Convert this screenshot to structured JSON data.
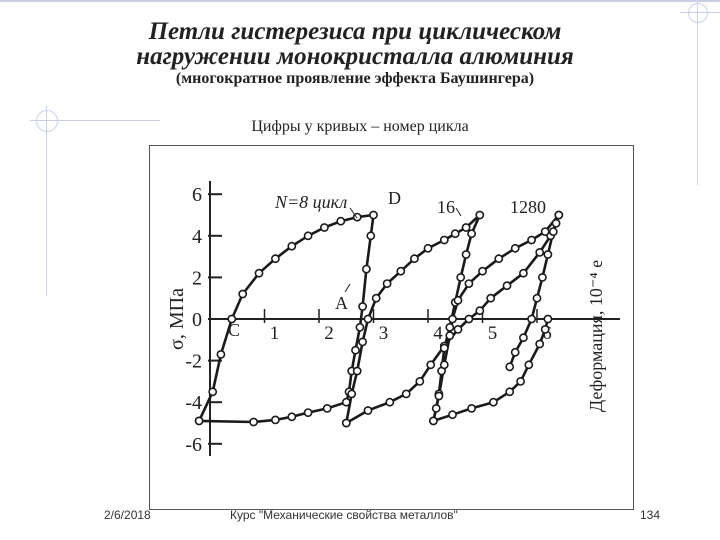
{
  "slide": {
    "title_line1": "Петли гистерезиса при циклическом",
    "title_line2": "нагружении монокристалла алюминия",
    "subtitle": "(многократное проявление эффекта Баушингера)",
    "caption": "Цифры у кривых – номер цикла",
    "footer_date": "2/6/2018",
    "footer_course": "Курс \"Механические свойства металлов\"",
    "footer_page": "134"
  },
  "chart_data": {
    "type": "line",
    "title": "",
    "ylabel": "σ, МПа",
    "xlabel": "Деформация, 10⁻⁴ e",
    "ylim": [
      -6,
      6
    ],
    "xlim": [
      -0.3,
      6.5
    ],
    "y_ticks": [
      "6",
      "4",
      "2",
      "0",
      "-2",
      "-4",
      "-6"
    ],
    "x_ticks": [
      "1",
      "2",
      "3",
      "4",
      "5",
      "6"
    ],
    "annotations": [
      "N=8 цикл",
      "D",
      "16",
      "1280",
      "A",
      "C"
    ],
    "series": [
      {
        "name": "N=8 цикл",
        "values": [
          [
            -0.2,
            -4.9
          ],
          [
            0.05,
            -3.5
          ],
          [
            0.2,
            -1.7
          ],
          [
            0.4,
            0.0
          ],
          [
            0.6,
            1.2
          ],
          [
            0.9,
            2.2
          ],
          [
            1.2,
            2.9
          ],
          [
            1.5,
            3.5
          ],
          [
            1.8,
            4.0
          ],
          [
            2.1,
            4.4
          ],
          [
            2.4,
            4.7
          ],
          [
            2.7,
            4.9
          ],
          [
            3.0,
            5.0
          ],
          [
            2.95,
            4.0
          ],
          [
            2.87,
            2.4
          ],
          [
            2.8,
            0.6
          ],
          [
            2.75,
            -0.4
          ],
          [
            2.67,
            -1.5
          ],
          [
            2.6,
            -2.5
          ],
          [
            2.55,
            -3.5
          ],
          [
            2.5,
            -4.0
          ],
          [
            2.15,
            -4.3
          ],
          [
            1.8,
            -4.5
          ],
          [
            1.5,
            -4.7
          ],
          [
            1.2,
            -4.85
          ],
          [
            0.8,
            -4.95
          ],
          [
            -0.2,
            -4.9
          ]
        ]
      },
      {
        "name": "16",
        "values": [
          [
            2.5,
            -5.0
          ],
          [
            2.9,
            -4.4
          ],
          [
            3.3,
            -4.0
          ],
          [
            3.6,
            -3.6
          ],
          [
            3.85,
            -3.0
          ],
          [
            4.05,
            -2.2
          ],
          [
            4.3,
            -1.3
          ],
          [
            4.55,
            -0.5
          ],
          [
            4.75,
            0.0
          ],
          [
            4.95,
            0.4
          ],
          [
            5.15,
            1.0
          ],
          [
            5.45,
            1.6
          ],
          [
            5.75,
            2.2
          ],
          [
            6.05,
            3.2
          ],
          [
            6.25,
            4.0
          ],
          [
            6.35,
            4.6
          ],
          [
            6.4,
            5.0
          ]
        ]
      },
      {
        "name": "16",
        "values": [
          [
            2.5,
            -5.0
          ],
          [
            2.6,
            -3.6
          ],
          [
            2.7,
            -2.5
          ],
          [
            2.8,
            -1.1
          ],
          [
            2.9,
            0.0
          ],
          [
            3.05,
            1.0
          ],
          [
            3.25,
            1.7
          ],
          [
            3.5,
            2.3
          ],
          [
            3.75,
            2.9
          ],
          [
            4.0,
            3.4
          ],
          [
            4.3,
            3.8
          ],
          [
            4.5,
            4.1
          ],
          [
            4.7,
            4.4
          ],
          [
            4.95,
            5.0
          ],
          [
            4.8,
            4.1
          ],
          [
            4.7,
            3.1
          ],
          [
            4.6,
            2.0
          ],
          [
            4.5,
            0.8
          ],
          [
            4.4,
            -0.4
          ],
          [
            4.3,
            -1.4
          ],
          [
            4.25,
            -2.5
          ],
          [
            4.2,
            -3.6
          ],
          [
            4.15,
            -4.3
          ],
          [
            4.1,
            -4.9
          ],
          [
            4.45,
            -4.6
          ],
          [
            4.8,
            -4.3
          ],
          [
            5.2,
            -4.0
          ],
          [
            5.5,
            -3.5
          ],
          [
            5.7,
            -3.0
          ],
          [
            5.85,
            -2.2
          ],
          [
            6.05,
            -1.2
          ],
          [
            6.15,
            -0.5
          ],
          [
            6.2,
            0.0
          ]
        ]
      },
      {
        "name": "1280",
        "values": [
          [
            4.1,
            -4.9
          ],
          [
            4.2,
            -3.7
          ],
          [
            4.3,
            -2.2
          ],
          [
            4.4,
            -0.8
          ],
          [
            4.45,
            0.0
          ],
          [
            4.55,
            0.9
          ],
          [
            4.75,
            1.7
          ],
          [
            5.0,
            2.3
          ],
          [
            5.3,
            2.9
          ],
          [
            5.6,
            3.4
          ],
          [
            5.9,
            3.8
          ],
          [
            6.15,
            4.2
          ],
          [
            6.4,
            5.0
          ],
          [
            6.3,
            4.2
          ],
          [
            6.2,
            3.1
          ],
          [
            6.1,
            2.0
          ],
          [
            6.0,
            1.0
          ],
          [
            5.9,
            0.0
          ],
          [
            5.75,
            -0.9
          ],
          [
            5.6,
            -1.6
          ],
          [
            5.5,
            -2.3
          ]
        ]
      }
    ]
  }
}
